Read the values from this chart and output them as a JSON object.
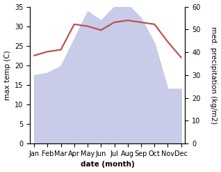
{
  "months": [
    "Jan",
    "Feb",
    "Mar",
    "Apr",
    "May",
    "Jun",
    "Jul",
    "Aug",
    "Sep",
    "Oct",
    "Nov",
    "Dec"
  ],
  "temperature": [
    22.5,
    23.5,
    24.0,
    30.5,
    30.0,
    29.0,
    31.0,
    31.5,
    31.0,
    30.5,
    26.0,
    22.0
  ],
  "precipitation": [
    30,
    31,
    34,
    46,
    58,
    54,
    60,
    61,
    55,
    44,
    24,
    24
  ],
  "temp_ylim": [
    0,
    35
  ],
  "precip_ylim": [
    0,
    60
  ],
  "temp_color": "#c05050",
  "precip_fill_color": "#c8cce8",
  "xlabel": "date (month)",
  "ylabel_left": "max temp (C)",
  "ylabel_right": "med. precipitation (kg/m2)",
  "label_fontsize": 7.5,
  "tick_fontsize": 7,
  "line_width": 1.6,
  "background_color": "#ffffff",
  "left_yticks": [
    0,
    5,
    10,
    15,
    20,
    25,
    30,
    35
  ],
  "right_yticks": [
    0,
    10,
    20,
    30,
    40,
    50,
    60
  ]
}
